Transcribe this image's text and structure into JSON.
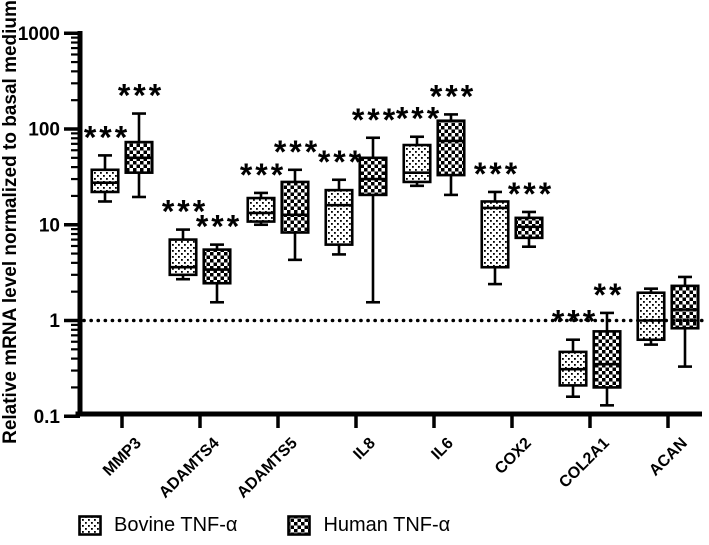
{
  "chart_data": {
    "type": "boxplot",
    "title": "",
    "ylabel": "Relative mRNA level normalized to basal medium",
    "xlabel": "",
    "yscale": "log",
    "ylim": [
      0.1,
      1000
    ],
    "yticks": [
      1000,
      100,
      10,
      1,
      0.1
    ],
    "ytick_labels": [
      "1000",
      "100",
      "10",
      "1",
      "0.1"
    ],
    "reference_line_y": 1,
    "reference_line_style": "dotted",
    "grid": false,
    "legend_position": "bottom",
    "colors": {
      "ink": "#000000",
      "background": "#ffffff"
    },
    "categories": [
      "MMP3",
      "ADAMTS4",
      "ADAMTS5",
      "IL8",
      "IL6",
      "COX2",
      "COL2A1",
      "ACAN"
    ],
    "series": [
      {
        "name": "Bovine TNF-α",
        "fill_pattern": "dots",
        "boxes": [
          {
            "lo": 17.5,
            "q1": 22.0,
            "med": 27.5,
            "q3": 37.5,
            "hi": 53.0,
            "sig": "***"
          },
          {
            "lo": 2.7,
            "q1": 3.0,
            "med": 3.6,
            "q3": 7.0,
            "hi": 8.9,
            "sig": "***"
          },
          {
            "lo": 10.0,
            "q1": 10.8,
            "med": 13.3,
            "q3": 19.0,
            "hi": 21.5,
            "sig": "***"
          },
          {
            "lo": 4.9,
            "q1": 6.2,
            "med": 16.0,
            "q3": 23.0,
            "hi": 29.5,
            "sig": "***"
          },
          {
            "lo": 25.5,
            "q1": 28.0,
            "med": 35.0,
            "q3": 68.0,
            "hi": 83.0,
            "sig": "***"
          },
          {
            "lo": 2.4,
            "q1": 3.6,
            "med": 15.0,
            "q3": 17.5,
            "hi": 22.0,
            "sig": "***"
          },
          {
            "lo": 0.16,
            "q1": 0.21,
            "med": 0.31,
            "q3": 0.47,
            "hi": 0.63,
            "sig": "***"
          },
          {
            "lo": 0.56,
            "q1": 0.63,
            "med": 1.0,
            "q3": 1.95,
            "hi": 2.15,
            "sig": ""
          }
        ]
      },
      {
        "name": "Human TNF-α",
        "fill_pattern": "checker",
        "boxes": [
          {
            "lo": 19.5,
            "q1": 35.0,
            "med": 50.0,
            "q3": 73.0,
            "hi": 145.0,
            "sig": "***"
          },
          {
            "lo": 1.55,
            "q1": 2.45,
            "med": 3.4,
            "q3": 5.5,
            "hi": 6.2,
            "sig": "***"
          },
          {
            "lo": 4.3,
            "q1": 8.3,
            "med": 12.7,
            "q3": 28.0,
            "hi": 37.5,
            "sig": "***"
          },
          {
            "lo": 1.55,
            "q1": 20.5,
            "med": 30.0,
            "q3": 50.0,
            "hi": 81.0,
            "sig": "***"
          },
          {
            "lo": 20.5,
            "q1": 33.0,
            "med": 75.0,
            "q3": 122.0,
            "hi": 142.0,
            "sig": "***"
          },
          {
            "lo": 5.9,
            "q1": 7.3,
            "med": 9.5,
            "q3": 11.8,
            "hi": 13.6,
            "sig": "***"
          },
          {
            "lo": 0.13,
            "q1": 0.2,
            "med": 0.35,
            "q3": 0.77,
            "hi": 1.2,
            "sig": "**"
          },
          {
            "lo": 0.33,
            "q1": 0.83,
            "med": 1.3,
            "q3": 2.3,
            "hi": 2.85,
            "sig": ""
          }
        ]
      }
    ]
  }
}
